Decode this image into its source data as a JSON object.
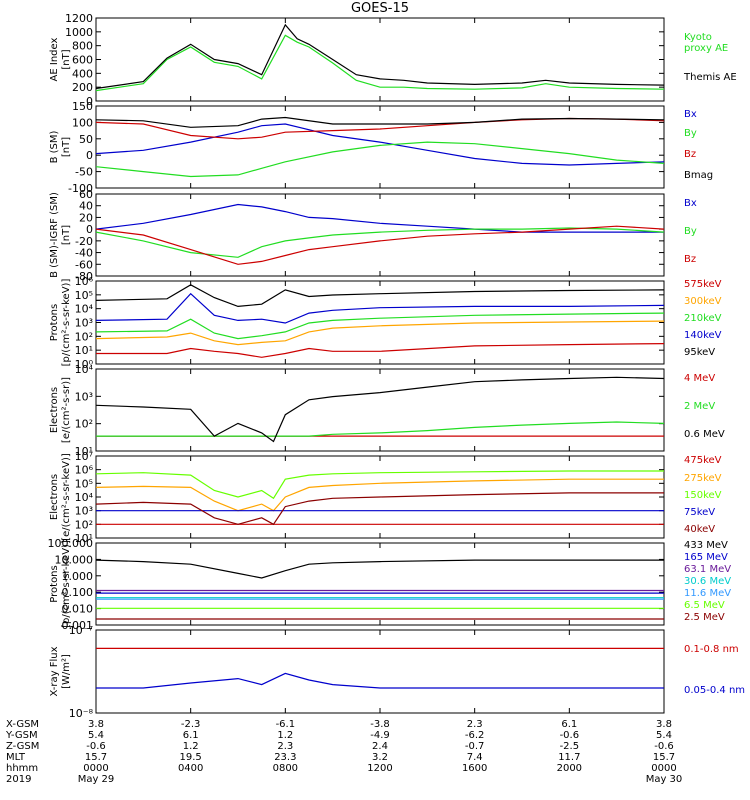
{
  "title": "GOES-15",
  "colors": {
    "black": "#000000",
    "green": "#22dd22",
    "red": "#cc0000",
    "blue": "#0000cc",
    "orange": "#ffa500",
    "dark_red": "#8b0000",
    "yellow": "#e8d800",
    "cyan": "#00cccc",
    "light_blue": "#3399ff",
    "purple": "#6a1b9a",
    "lime": "#66ff00"
  },
  "time_axis": {
    "rows": [
      {
        "label": "X-GSM",
        "values": [
          "3.8",
          "-2.3",
          "-6.1",
          "-3.8",
          "2.3",
          "6.1",
          "3.8"
        ]
      },
      {
        "label": "Y-GSM",
        "values": [
          "5.4",
          "6.1",
          "1.2",
          "-4.9",
          "-6.2",
          "-0.6",
          "5.4"
        ]
      },
      {
        "label": "Z-GSM",
        "values": [
          "-0.6",
          "1.2",
          "2.3",
          "2.4",
          "-0.7",
          "-2.5",
          "-0.6"
        ]
      },
      {
        "label": "MLT",
        "values": [
          "15.7",
          "19.5",
          "23.3",
          "3.2",
          "7.4",
          "11.7",
          "15.7"
        ]
      },
      {
        "label": "hhmm",
        "values": [
          "0000",
          "0400",
          "0800",
          "1200",
          "1600",
          "2000",
          "0000"
        ]
      }
    ],
    "year_label": "2019",
    "date_start": "May 29",
    "date_end": "May 30"
  },
  "chart_data": [
    {
      "type": "line",
      "ylabel": "AE Index",
      "yunit": "[nT]",
      "ylim": [
        0,
        1200
      ],
      "yticks": [
        "0",
        "200",
        "400",
        "600",
        "800",
        "1000",
        "1200"
      ],
      "x": [
        0,
        2,
        3,
        4,
        5,
        6,
        7,
        8,
        8.5,
        9,
        10,
        11,
        12,
        13,
        14,
        16,
        18,
        19,
        20,
        22,
        24
      ],
      "series": [
        {
          "name": "Kyoto\nproxy AE",
          "color": "green",
          "values": [
            150,
            250,
            600,
            780,
            560,
            500,
            320,
            950,
            850,
            780,
            550,
            300,
            200,
            200,
            180,
            170,
            190,
            250,
            200,
            180,
            170
          ]
        },
        {
          "name": "Themis AE",
          "color": "black",
          "values": [
            180,
            280,
            620,
            820,
            600,
            540,
            380,
            1100,
            900,
            820,
            600,
            380,
            320,
            300,
            260,
            240,
            260,
            300,
            260,
            240,
            230
          ]
        }
      ]
    },
    {
      "type": "line",
      "ylabel": "B (SM)",
      "yunit": "[nT]",
      "ylim": [
        -100,
        150
      ],
      "yticks": [
        "-100",
        "-50",
        "0",
        "50",
        "100",
        "150"
      ],
      "x": [
        0,
        2,
        4,
        6,
        7,
        8,
        10,
        12,
        14,
        16,
        18,
        20,
        22,
        24
      ],
      "series": [
        {
          "name": "Bx",
          "color": "blue",
          "values": [
            5,
            15,
            40,
            70,
            90,
            95,
            60,
            40,
            15,
            -10,
            -25,
            -30,
            -25,
            -20
          ]
        },
        {
          "name": "By",
          "color": "green",
          "values": [
            -35,
            -50,
            -65,
            -60,
            -40,
            -20,
            10,
            30,
            40,
            35,
            20,
            5,
            -15,
            -25
          ]
        },
        {
          "name": "Bz",
          "color": "red",
          "values": [
            100,
            95,
            60,
            50,
            55,
            70,
            75,
            80,
            90,
            100,
            108,
            112,
            110,
            105
          ]
        },
        {
          "name": "Bmag",
          "color": "black",
          "values": [
            108,
            105,
            85,
            90,
            110,
            115,
            95,
            95,
            95,
            100,
            110,
            112,
            110,
            108
          ]
        }
      ]
    },
    {
      "type": "line",
      "ylabel": "B (SM)-IGRF (SM)",
      "yunit": "[nT]",
      "ylim": [
        -80,
        60
      ],
      "yticks": [
        "-80",
        "-60",
        "-40",
        "-20",
        "0",
        "20",
        "40",
        "60"
      ],
      "x": [
        0,
        2,
        4,
        6,
        7,
        8,
        9,
        10,
        12,
        14,
        16,
        18,
        20,
        22,
        24
      ],
      "series": [
        {
          "name": "Bx",
          "color": "blue",
          "values": [
            0,
            10,
            25,
            42,
            38,
            30,
            20,
            18,
            10,
            5,
            0,
            -5,
            -5,
            -5,
            -5
          ]
        },
        {
          "name": "By",
          "color": "green",
          "values": [
            -5,
            -20,
            -40,
            -48,
            -30,
            -20,
            -15,
            -10,
            -5,
            -2,
            0,
            0,
            2,
            0,
            -5
          ]
        },
        {
          "name": "Bz",
          "color": "red",
          "values": [
            0,
            -10,
            -35,
            -60,
            -55,
            -45,
            -35,
            -30,
            -20,
            -12,
            -8,
            -5,
            0,
            5,
            0
          ]
        }
      ]
    },
    {
      "type": "line",
      "ylabel": "Protons",
      "yunit": "[p/(cm²-s-sr-keV)]",
      "yscale": "log",
      "ylim": [
        0.3,
        1000000
      ],
      "yticks": [
        "10⁰",
        "10¹",
        "10²",
        "10³",
        "10⁴",
        "10⁵",
        "10⁶"
      ],
      "x": [
        0,
        3,
        4,
        5,
        6,
        7,
        8,
        9,
        10,
        12,
        16,
        20,
        24
      ],
      "series": [
        {
          "name": "575keV",
          "color": "red",
          "values": [
            2,
            2,
            5,
            3,
            2,
            1,
            2,
            5,
            3,
            3,
            8,
            10,
            12
          ]
        },
        {
          "name": "300keV",
          "color": "orange",
          "values": [
            30,
            40,
            80,
            20,
            10,
            15,
            20,
            100,
            200,
            300,
            500,
            600,
            700
          ]
        },
        {
          "name": "210keV",
          "color": "green",
          "values": [
            100,
            120,
            1000,
            80,
            30,
            50,
            100,
            500,
            800,
            1200,
            2000,
            2500,
            3000
          ]
        },
        {
          "name": "140keV",
          "color": "blue",
          "values": [
            800,
            1000,
            100000,
            2000,
            800,
            1000,
            500,
            3000,
            5000,
            8000,
            10000,
            10000,
            12000
          ]
        },
        {
          "name": "95keV",
          "color": "black",
          "values": [
            30000,
            40000,
            500000,
            50000,
            10000,
            15000,
            200000,
            60000,
            80000,
            100000,
            150000,
            180000,
            200000
          ]
        }
      ]
    },
    {
      "type": "line",
      "ylabel": "Electrons",
      "yunit": "[e/(cm²-s-sr)]",
      "yscale": "log",
      "ylim": [
        3,
        100000
      ],
      "yticks": [
        "10¹",
        "10²",
        "10³",
        "10⁴"
      ],
      "x": [
        0,
        2,
        4,
        5,
        6,
        7,
        7.5,
        8,
        9,
        10,
        12,
        14,
        16,
        18,
        20,
        22,
        24
      ],
      "series": [
        {
          "name": "4 MeV",
          "color": "red",
          "values": [
            20,
            20,
            20,
            20,
            20,
            20,
            20,
            20,
            20,
            20,
            20,
            20,
            20,
            20,
            20,
            20,
            20
          ]
        },
        {
          "name": "2 MeV",
          "color": "green",
          "values": [
            20,
            20,
            20,
            20,
            20,
            20,
            20,
            20,
            20,
            25,
            30,
            40,
            60,
            80,
            100,
            120,
            100
          ]
        },
        {
          "name": "0.6 MeV",
          "color": "black",
          "values": [
            1000,
            800,
            600,
            20,
            100,
            30,
            10,
            300,
            2000,
            3000,
            5000,
            10000,
            20000,
            25000,
            30000,
            35000,
            30000
          ]
        }
      ]
    },
    {
      "type": "line",
      "ylabel": "Electrons",
      "yunit": "[e/(cm²-s-sr-keV)]",
      "yscale": "log",
      "ylim": [
        10,
        10000000
      ],
      "yticks": [
        "10¹",
        "10²",
        "10³",
        "10⁴",
        "10⁵",
        "10⁶",
        "10⁷"
      ],
      "x": [
        0,
        2,
        4,
        5,
        6,
        7,
        7.5,
        8,
        9,
        10,
        12,
        16,
        20,
        24
      ],
      "series": [
        {
          "name": "475keV",
          "color": "red",
          "values": [
            100,
            100,
            100,
            100,
            100,
            100,
            100,
            100,
            100,
            100,
            100,
            100,
            100,
            100
          ]
        },
        {
          "name": "275keV",
          "color": "orange",
          "values": [
            50000,
            60000,
            50000,
            5000,
            1000,
            3000,
            1000,
            10000,
            50000,
            70000,
            100000,
            150000,
            200000,
            200000
          ]
        },
        {
          "name": "150keV",
          "color": "lime",
          "values": [
            500000,
            600000,
            400000,
            30000,
            10000,
            30000,
            8000,
            200000,
            400000,
            500000,
            600000,
            700000,
            800000,
            800000
          ]
        },
        {
          "name": "75keV",
          "color": "blue",
          "values": [
            1000,
            1000,
            1000,
            1000,
            1000,
            1000,
            1000,
            1000,
            1000,
            1000,
            1000,
            1000,
            1000,
            1000
          ]
        },
        {
          "name": "40keV",
          "color": "dark_red",
          "values": [
            3000,
            4000,
            3000,
            300,
            100,
            300,
            100,
            2000,
            5000,
            8000,
            10000,
            15000,
            20000,
            20000
          ]
        }
      ]
    },
    {
      "type": "line",
      "ylabel": "Protons",
      "yunit": "[p/(cm²-s-sr-keV)]",
      "yscale": "log",
      "ylim": [
        0.0008,
        200
      ],
      "yticks": [
        "0.001",
        "0.010",
        "0.100",
        "1.000",
        "10.000",
        "100.000"
      ],
      "x": [
        0,
        2,
        4,
        6,
        7,
        8,
        9,
        10,
        12,
        16,
        20,
        24
      ],
      "series": [
        {
          "name": "433 MeV",
          "color": "black",
          "values": [
            15,
            12,
            8,
            2,
            1,
            3,
            8,
            10,
            12,
            15,
            15,
            15
          ]
        },
        {
          "name": "165 MeV",
          "color": "blue",
          "values": [
            0.1,
            0.1,
            0.1,
            0.1,
            0.1,
            0.1,
            0.1,
            0.1,
            0.1,
            0.1,
            0.1,
            0.1
          ]
        },
        {
          "name": "63.1 MeV",
          "color": "purple",
          "values": [
            0.15,
            0.15,
            0.15,
            0.15,
            0.15,
            0.15,
            0.15,
            0.15,
            0.15,
            0.15,
            0.15,
            0.15
          ]
        },
        {
          "name": "30.6 MeV",
          "color": "cyan",
          "values": [
            0.05,
            0.05,
            0.05,
            0.05,
            0.05,
            0.05,
            0.05,
            0.05,
            0.05,
            0.05,
            0.05,
            0.05
          ]
        },
        {
          "name": "11.6 MeV",
          "color": "light_blue",
          "values": [
            0.04,
            0.04,
            0.04,
            0.04,
            0.04,
            0.04,
            0.04,
            0.04,
            0.04,
            0.04,
            0.04,
            0.04
          ]
        },
        {
          "name": "6.5 MeV",
          "color": "lime",
          "values": [
            0.01,
            0.01,
            0.01,
            0.01,
            0.01,
            0.01,
            0.01,
            0.01,
            0.01,
            0.01,
            0.01,
            0.01
          ]
        },
        {
          "name": "2.5 MeV",
          "color": "dark_red",
          "values": [
            0.002,
            0.002,
            0.002,
            0.002,
            0.002,
            0.002,
            0.002,
            0.002,
            0.002,
            0.002,
            0.002,
            0.002
          ]
        }
      ]
    },
    {
      "type": "line",
      "ylabel": "X-ray Flux",
      "yunit": "[W/m²]",
      "yscale": "log",
      "ylim": [
        1e-08,
        1e-07
      ],
      "yticks": [
        "10⁻⁸",
        "10⁻⁷"
      ],
      "x": [
        0,
        2,
        4,
        6,
        7,
        8,
        9,
        10,
        12,
        16,
        20,
        24
      ],
      "series": [
        {
          "name": "0.1-0.8 nm",
          "color": "red",
          "values": [
            6e-08,
            6e-08,
            6e-08,
            6e-08,
            6e-08,
            6e-08,
            6e-08,
            6e-08,
            6e-08,
            6e-08,
            6e-08,
            6e-08
          ]
        },
        {
          "name": "0.05-0.4 nm",
          "color": "blue",
          "values": [
            2e-08,
            2e-08,
            2.3e-08,
            2.6e-08,
            2.2e-08,
            3e-08,
            2.5e-08,
            2.2e-08,
            2e-08,
            2e-08,
            2e-08,
            2e-08
          ]
        }
      ]
    }
  ]
}
